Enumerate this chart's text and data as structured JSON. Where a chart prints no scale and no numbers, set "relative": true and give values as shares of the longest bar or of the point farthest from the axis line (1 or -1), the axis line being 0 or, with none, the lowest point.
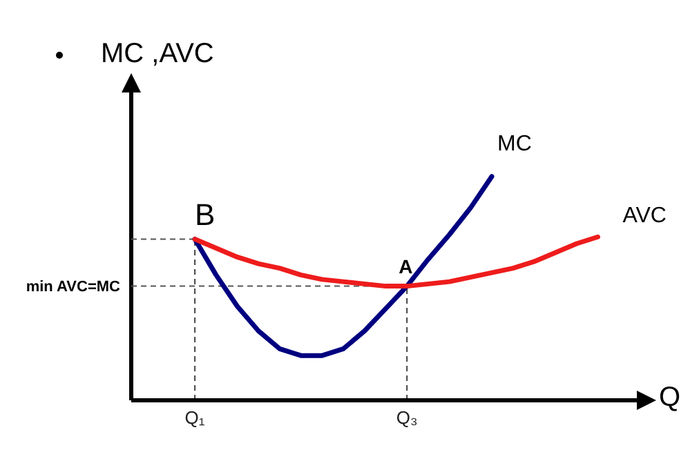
{
  "chart_data": {
    "type": "line",
    "relative": true,
    "ylabel": "MC ,AVC",
    "xlabel": "Q",
    "categories": [
      null,
      null,
      null,
      "Q₁",
      null,
      null,
      null,
      null,
      null,
      null,
      null,
      null,
      null,
      "Q₃",
      null,
      null,
      null,
      null,
      null,
      null,
      null,
      null,
      null
    ],
    "series": [
      {
        "name": "MC",
        "color": "#000080",
        "values": [
          null,
          null,
          null,
          0.72,
          0.56,
          0.42,
          0.31,
          0.23,
          0.2,
          0.2,
          0.23,
          0.31,
          0.41,
          0.51,
          0.63,
          0.74,
          0.86,
          1,
          null,
          null,
          null,
          null,
          null
        ]
      },
      {
        "name": "AVC",
        "color": "#ee1c1c",
        "values": [
          null,
          null,
          null,
          0.72,
          0.68,
          0.64,
          0.61,
          0.59,
          0.56,
          0.54,
          0.53,
          0.52,
          0.51,
          0.51,
          0.52,
          0.53,
          0.55,
          0.57,
          0.59,
          0.62,
          0.66,
          0.7,
          0.73
        ]
      }
    ],
    "ref_lines": [
      {
        "axis": "y",
        "value": 0.72,
        "line_style": "dashed"
      },
      {
        "axis": "y",
        "value": 0.51,
        "label": "min AVC=MC",
        "line_style": "dashed"
      },
      {
        "axis": "x",
        "value": "Q₁",
        "line_style": "dashed"
      },
      {
        "axis": "x",
        "value": "Q₃",
        "line_style": "dashed"
      }
    ],
    "annotations": [
      {
        "text": "B",
        "x": "Q₁",
        "y": 0.72
      },
      {
        "text": "A",
        "x": "Q₃",
        "y": 0.51
      }
    ],
    "legend": false,
    "grid": false,
    "marker": "none",
    "line_style": "solid"
  }
}
